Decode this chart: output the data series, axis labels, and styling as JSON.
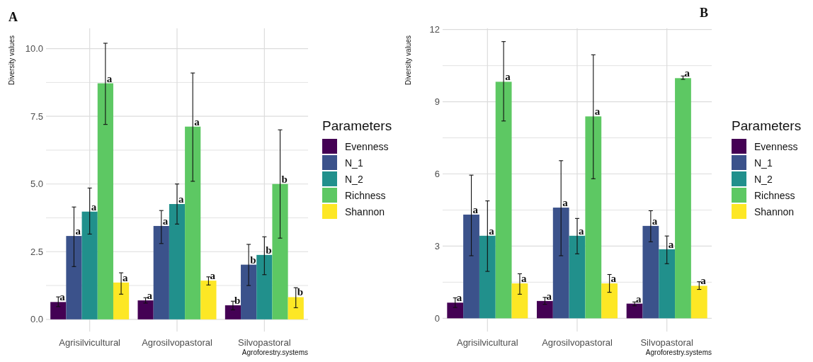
{
  "chart_data": [
    {
      "type": "bar",
      "title": "A",
      "xlabel": "Agroforestry.systems",
      "ylabel": "Diversity values",
      "legend_title": "Parameters",
      "legend": "right",
      "grid": true,
      "categories": [
        "Agrisilvicultural",
        "Agrosilvopastoral",
        "Silvopastoral"
      ],
      "ylim": [
        -0.45,
        10.75
      ],
      "yticks": [
        {
          "value": 0,
          "label": "0.0"
        },
        {
          "value": 1.25,
          "label": null
        },
        {
          "value": 2.5,
          "label": "2.5"
        },
        {
          "value": 3.75,
          "label": null
        },
        {
          "value": 5,
          "label": "5.0"
        },
        {
          "value": 6.25,
          "label": null
        },
        {
          "value": 7.5,
          "label": "7.5"
        },
        {
          "value": 8.75,
          "label": null
        },
        {
          "value": 10,
          "label": "10.0"
        }
      ],
      "series": [
        {
          "name": "Evenness",
          "color": "#440154",
          "values": [
            0.64,
            0.7,
            0.52
          ],
          "errors": [
            [
              0.47,
              0.83
            ],
            [
              0.6,
              0.8
            ],
            [
              0.35,
              0.67
            ]
          ],
          "value_labels": [
            "a",
            "a",
            "b"
          ]
        },
        {
          "name": "N_1",
          "color": "#3b528b",
          "values": [
            3.08,
            3.45,
            2.02
          ],
          "errors": [
            [
              1.95,
              4.15
            ],
            [
              2.8,
              4.02
            ],
            [
              1.25,
              2.77
            ]
          ],
          "value_labels": [
            "a",
            "a",
            "b"
          ]
        },
        {
          "name": "N_2",
          "color": "#21908c",
          "values": [
            3.98,
            4.26,
            2.38
          ],
          "errors": [
            [
              3.15,
              4.85
            ],
            [
              3.52,
              5.0
            ],
            [
              1.65,
              3.05
            ]
          ],
          "value_labels": [
            "a",
            "a",
            "b"
          ]
        },
        {
          "name": "Richness",
          "color": "#5dc863",
          "values": [
            8.72,
            7.12,
            5.0
          ],
          "errors": [
            [
              7.2,
              10.2
            ],
            [
              5.1,
              9.1
            ],
            [
              3.0,
              7.0
            ]
          ],
          "value_labels": [
            "a",
            "a",
            "b"
          ]
        },
        {
          "name": "Shannon",
          "color": "#fde725",
          "values": [
            1.36,
            1.43,
            0.82
          ],
          "errors": [
            [
              0.93,
              1.72
            ],
            [
              1.27,
              1.57
            ],
            [
              0.43,
              1.17
            ]
          ],
          "value_labels": [
            "a",
            "a",
            "b"
          ]
        }
      ]
    },
    {
      "type": "bar",
      "title": "B",
      "xlabel": "Agroforestry.systems",
      "ylabel": "Diversity values",
      "legend_title": "Parameters",
      "legend": "right",
      "grid": true,
      "categories": [
        "Agrisilvicultural",
        "Agrosilvopastoral",
        "Silvopastoral"
      ],
      "ylim": [
        -0.55,
        12.05
      ],
      "yticks": [
        0,
        {
          "value": 1.5,
          "label": null
        },
        3,
        {
          "value": 4.5,
          "label": null
        },
        6,
        {
          "value": 7.5,
          "label": null
        },
        9,
        {
          "value": 10.5,
          "label": null
        },
        12
      ],
      "series": [
        {
          "name": "Evenness",
          "color": "#440154",
          "values": [
            0.65,
            0.72,
            0.61
          ],
          "errors": [
            [
              0.45,
              0.85
            ],
            [
              0.58,
              0.87
            ],
            [
              0.52,
              0.68
            ]
          ],
          "value_labels": [
            "a",
            "a",
            "a"
          ]
        },
        {
          "name": "N_1",
          "color": "#3b528b",
          "values": [
            4.31,
            4.6,
            3.84
          ],
          "errors": [
            [
              2.6,
              5.95
            ],
            [
              2.6,
              6.55
            ],
            [
              3.18,
              4.47
            ]
          ],
          "value_labels": [
            "a",
            "a",
            "a"
          ]
        },
        {
          "name": "N_2",
          "color": "#21908c",
          "values": [
            3.43,
            3.43,
            2.87
          ],
          "errors": [
            [
              1.95,
              4.88
            ],
            [
              2.68,
              4.15
            ],
            [
              2.27,
              3.42
            ]
          ],
          "value_labels": [
            "a",
            "a",
            "a"
          ]
        },
        {
          "name": "Richness",
          "color": "#5dc863",
          "values": [
            9.83,
            8.39,
            9.98
          ],
          "errors": [
            [
              8.2,
              11.5
            ],
            [
              5.8,
              10.95
            ],
            [
              9.93,
              10.07
            ]
          ],
          "value_labels": [
            "a",
            "a",
            "a"
          ]
        },
        {
          "name": "Shannon",
          "color": "#fde725",
          "values": [
            1.45,
            1.45,
            1.35
          ],
          "errors": [
            [
              1.0,
              1.85
            ],
            [
              1.08,
              1.82
            ],
            [
              1.2,
              1.52
            ]
          ],
          "value_labels": [
            "a",
            "a",
            "a"
          ]
        }
      ]
    }
  ]
}
